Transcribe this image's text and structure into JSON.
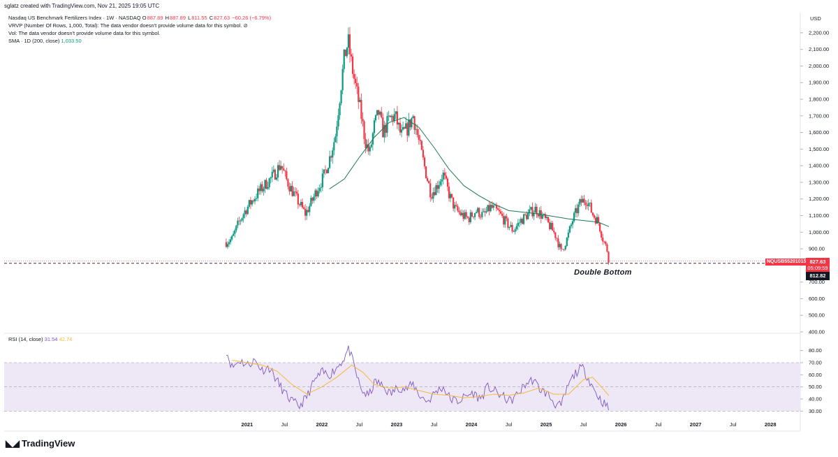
{
  "header": {
    "attribution": "sglatz created with TradingView.com, Nov 21, 2025 19:05 UTC"
  },
  "legend": {
    "symbol": "Nasdaq US Benchmark Fertilizers Index · 1W · NASDAQ",
    "o_label": "O",
    "o_value": "887.89",
    "h_label": "H",
    "h_value": "887.89",
    "l_label": "L",
    "l_value": "811.55",
    "c_label": "C",
    "c_value": "827.63",
    "change": "−60.26 (−6.79%)",
    "vrvp": "VRVP (Number Of Rows, 1,000, Total): The data vendor doesn't provide volume data for this symbol.",
    "vrvp_icon": "⊘",
    "vol": "Vol: The data vendor doesn't provide volume data for this symbol.",
    "sma_label": "SMA · 1D (200, close)",
    "sma_value": "1,033.50",
    "rsi_label": "RSI (14, close)",
    "rsi_value": "31.54",
    "rsi_ma_value": "42.74"
  },
  "axis": {
    "currency": "USD"
  },
  "price_tags": {
    "symbol_tag": "NQUSB55201015",
    "last_price": "827.63",
    "countdown": "05:09:59",
    "hover_price": "812.82"
  },
  "annotation": "Double Bottom",
  "footer": {
    "brand": "TradingView",
    "logo_icon": "tradingview-logo-icon"
  },
  "colors": {
    "up": "#089981",
    "down": "#f23645",
    "sma": "#1e7a55",
    "rsi": "#7e57c2",
    "rsi_ma": "#f7b93c",
    "rsi_band": "#ede7f6"
  },
  "chart_data": [
    {
      "type": "candlestick",
      "title": "Nasdaq US Benchmark Fertilizers Index · 1W · NASDAQ",
      "ylim": [
        400,
        2250
      ],
      "y_ticks": [
        "400.00",
        "500.00",
        "600.00",
        "700.00",
        "800.00",
        "900.00",
        "1,000.00",
        "1,100.00",
        "1,200.00",
        "1,300.00",
        "1,400.00",
        "1,500.00",
        "1,600.00",
        "1,700.00",
        "1,800.00",
        "1,900.00",
        "2,000.00",
        "2,100.00",
        "2,200.00"
      ],
      "x_ticks": [
        "2021",
        "Jul",
        "2022",
        "Jul",
        "2023",
        "Jul",
        "2024",
        "Jul",
        "2025",
        "Jul",
        "2026",
        "Jul",
        "2027",
        "Jul",
        "2028"
      ],
      "x_tick_years": [
        2021,
        2021.5,
        2022,
        2022.5,
        2023,
        2023.5,
        2024,
        2024.5,
        2025,
        2025.5,
        2026,
        2026.5,
        2027,
        2027.5,
        2028
      ],
      "x_range": [
        2017.75,
        2028.4
      ],
      "close_path": [
        [
          2020.72,
          940
        ],
        [
          2020.8,
          960
        ],
        [
          2020.88,
          1050
        ],
        [
          2020.96,
          1120
        ],
        [
          2021.05,
          1180
        ],
        [
          2021.15,
          1240
        ],
        [
          2021.25,
          1290
        ],
        [
          2021.35,
          1340
        ],
        [
          2021.45,
          1410
        ],
        [
          2021.52,
          1320
        ],
        [
          2021.6,
          1250
        ],
        [
          2021.7,
          1170
        ],
        [
          2021.78,
          1110
        ],
        [
          2021.86,
          1180
        ],
        [
          2021.94,
          1260
        ],
        [
          2022.02,
          1330
        ],
        [
          2022.1,
          1440
        ],
        [
          2022.18,
          1580
        ],
        [
          2022.24,
          1820
        ],
        [
          2022.3,
          2050
        ],
        [
          2022.35,
          2150
        ],
        [
          2022.4,
          2000
        ],
        [
          2022.45,
          1880
        ],
        [
          2022.52,
          1720
        ],
        [
          2022.58,
          1550
        ],
        [
          2022.64,
          1470
        ],
        [
          2022.7,
          1640
        ],
        [
          2022.76,
          1720
        ],
        [
          2022.82,
          1600
        ],
        [
          2022.9,
          1680
        ],
        [
          2022.98,
          1700
        ],
        [
          2023.06,
          1580
        ],
        [
          2023.14,
          1620
        ],
        [
          2023.22,
          1700
        ],
        [
          2023.3,
          1540
        ],
        [
          2023.38,
          1380
        ],
        [
          2023.46,
          1230
        ],
        [
          2023.54,
          1280
        ],
        [
          2023.62,
          1350
        ],
        [
          2023.7,
          1230
        ],
        [
          2023.78,
          1140
        ],
        [
          2023.88,
          1100
        ],
        [
          2023.96,
          1080
        ],
        [
          2024.06,
          1130
        ],
        [
          2024.16,
          1100
        ],
        [
          2024.26,
          1150
        ],
        [
          2024.36,
          1120
        ],
        [
          2024.46,
          1060
        ],
        [
          2024.56,
          1010
        ],
        [
          2024.66,
          1070
        ],
        [
          2024.76,
          1110
        ],
        [
          2024.86,
          1140
        ],
        [
          2024.96,
          1090
        ],
        [
          2025.06,
          1030
        ],
        [
          2025.14,
          970
        ],
        [
          2025.2,
          880
        ],
        [
          2025.28,
          960
        ],
        [
          2025.36,
          1080
        ],
        [
          2025.46,
          1180
        ],
        [
          2025.54,
          1200
        ],
        [
          2025.62,
          1110
        ],
        [
          2025.7,
          1060
        ],
        [
          2025.76,
          960
        ],
        [
          2025.82,
          887.89
        ],
        [
          2025.84,
          827.63
        ]
      ],
      "sma": [
        [
          2022.1,
          1260
        ],
        [
          2022.3,
          1320
        ],
        [
          2022.5,
          1450
        ],
        [
          2022.7,
          1570
        ],
        [
          2022.9,
          1660
        ],
        [
          2023.1,
          1690
        ],
        [
          2023.3,
          1630
        ],
        [
          2023.5,
          1510
        ],
        [
          2023.7,
          1380
        ],
        [
          2023.9,
          1280
        ],
        [
          2024.1,
          1220
        ],
        [
          2024.3,
          1170
        ],
        [
          2024.5,
          1130
        ],
        [
          2024.7,
          1120
        ],
        [
          2024.9,
          1110
        ],
        [
          2025.1,
          1095
        ],
        [
          2025.3,
          1080
        ],
        [
          2025.5,
          1070
        ],
        [
          2025.7,
          1060
        ],
        [
          2025.84,
          1033.5
        ]
      ],
      "reference_line": 812.82
    },
    {
      "type": "line",
      "title": "RSI (14, close)",
      "ylim": [
        25,
        85
      ],
      "y_ticks": [
        "30.00",
        "40.00",
        "50.00",
        "60.00",
        "70.00",
        "80.00"
      ],
      "band": [
        30,
        70
      ],
      "midline": 50,
      "series": [
        {
          "name": "RSI",
          "values": [
            [
              2020.72,
              80
            ],
            [
              2020.8,
              66
            ],
            [
              2020.9,
              72
            ],
            [
              2021.0,
              68
            ],
            [
              2021.1,
              72
            ],
            [
              2021.2,
              64
            ],
            [
              2021.3,
              66
            ],
            [
              2021.4,
              55
            ],
            [
              2021.5,
              45
            ],
            [
              2021.6,
              38
            ],
            [
              2021.7,
              34
            ],
            [
              2021.8,
              42
            ],
            [
              2021.9,
              55
            ],
            [
              2022.0,
              62
            ],
            [
              2022.1,
              60
            ],
            [
              2022.2,
              66
            ],
            [
              2022.3,
              74
            ],
            [
              2022.36,
              82
            ],
            [
              2022.44,
              65
            ],
            [
              2022.52,
              48
            ],
            [
              2022.62,
              42
            ],
            [
              2022.72,
              55
            ],
            [
              2022.82,
              50
            ],
            [
              2022.92,
              44
            ],
            [
              2023.02,
              50
            ],
            [
              2023.12,
              48
            ],
            [
              2023.22,
              52
            ],
            [
              2023.32,
              42
            ],
            [
              2023.42,
              38
            ],
            [
              2023.52,
              46
            ],
            [
              2023.62,
              50
            ],
            [
              2023.72,
              40
            ],
            [
              2023.82,
              38
            ],
            [
              2023.92,
              42
            ],
            [
              2024.02,
              45
            ],
            [
              2024.12,
              40
            ],
            [
              2024.22,
              50
            ],
            [
              2024.32,
              46
            ],
            [
              2024.42,
              42
            ],
            [
              2024.52,
              38
            ],
            [
              2024.62,
              44
            ],
            [
              2024.72,
              52
            ],
            [
              2024.82,
              56
            ],
            [
              2024.92,
              48
            ],
            [
              2025.02,
              44
            ],
            [
              2025.12,
              36
            ],
            [
              2025.2,
              34
            ],
            [
              2025.3,
              52
            ],
            [
              2025.4,
              62
            ],
            [
              2025.48,
              66
            ],
            [
              2025.56,
              58
            ],
            [
              2025.64,
              48
            ],
            [
              2025.72,
              40
            ],
            [
              2025.78,
              36
            ],
            [
              2025.84,
              31.54
            ]
          ]
        },
        {
          "name": "RSI-based MA",
          "values": [
            [
              2020.8,
              72
            ],
            [
              2021.0,
              70
            ],
            [
              2021.2,
              68
            ],
            [
              2021.4,
              63
            ],
            [
              2021.6,
              52
            ],
            [
              2021.8,
              44
            ],
            [
              2022.0,
              50
            ],
            [
              2022.2,
              58
            ],
            [
              2022.4,
              68
            ],
            [
              2022.55,
              62
            ],
            [
              2022.7,
              52
            ],
            [
              2022.9,
              49
            ],
            [
              2023.1,
              50
            ],
            [
              2023.3,
              47
            ],
            [
              2023.5,
              44
            ],
            [
              2023.7,
              43
            ],
            [
              2023.9,
              41
            ],
            [
              2024.1,
              42
            ],
            [
              2024.3,
              44
            ],
            [
              2024.5,
              43
            ],
            [
              2024.7,
              45
            ],
            [
              2024.9,
              49
            ],
            [
              2025.1,
              44
            ],
            [
              2025.3,
              44
            ],
            [
              2025.5,
              56
            ],
            [
              2025.62,
              58
            ],
            [
              2025.74,
              50
            ],
            [
              2025.84,
              42.74
            ]
          ]
        }
      ]
    }
  ]
}
